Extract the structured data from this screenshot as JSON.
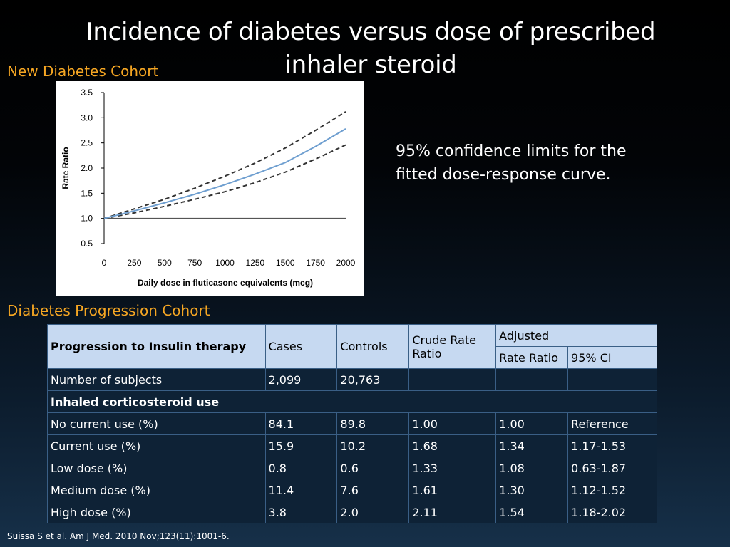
{
  "title": "Incidence of diabetes versus dose of prescribed inhaler steroid",
  "new_cohort_label": "New Diabetes Cohort",
  "progression_cohort_label": "Diabetes Progression Cohort",
  "note": "95% confidence limits for the fitted dose-response curve.",
  "citation": "Suissa S et al. Am J Med. 2010 Nov;123(11):1001-6.",
  "colors": {
    "accent": "#f5a623",
    "fitted_line": "#6f9fd0",
    "ci_line": "#333333",
    "reference_line": "#555555"
  },
  "chart_data": {
    "type": "line",
    "title": "",
    "xlabel": "Daily dose in fluticasone equivalents (mcg)",
    "ylabel": "Rate Ratio",
    "xlim": [
      0,
      2000
    ],
    "ylim": [
      0.5,
      3.5
    ],
    "x_ticks": [
      "0",
      "250",
      "500",
      "750",
      "1000",
      "1250",
      "1500",
      "1750",
      "2000"
    ],
    "y_ticks": [
      "0.5",
      "1.0",
      "1.5",
      "2.0",
      "2.5",
      "3.0",
      "3.5"
    ],
    "grid": false,
    "legend": "none",
    "series": [
      {
        "style": "solid-blue",
        "x": [
          0,
          250,
          500,
          750,
          1000,
          1250,
          1500,
          1750,
          2000
        ],
        "values": [
          1.0,
          1.15,
          1.31,
          1.48,
          1.67,
          1.88,
          2.11,
          2.43,
          2.78
        ]
      },
      {
        "style": "dashed-upper",
        "x": [
          0,
          250,
          500,
          750,
          1000,
          1250,
          1500,
          1750,
          2000
        ],
        "values": [
          1.0,
          1.19,
          1.38,
          1.6,
          1.84,
          2.1,
          2.4,
          2.75,
          3.12
        ]
      },
      {
        "style": "dashed-lower",
        "x": [
          0,
          250,
          500,
          750,
          1000,
          1250,
          1500,
          1750,
          2000
        ],
        "values": [
          1.0,
          1.11,
          1.24,
          1.38,
          1.53,
          1.71,
          1.92,
          2.18,
          2.46
        ]
      },
      {
        "style": "reference",
        "x": [
          0,
          2000
        ],
        "values": [
          1.0,
          1.0
        ]
      }
    ]
  },
  "table": {
    "header": {
      "label": "Progression to Insulin therapy",
      "cases": "Cases",
      "controls": "Controls",
      "crude": "Crude Rate Ratio",
      "adjusted": "Adjusted",
      "rate_ratio": "Rate Ratio",
      "ci": "95% CI"
    },
    "subjects": {
      "label": "Number of subjects",
      "cases": "2,099",
      "controls": "20,763"
    },
    "section": "Inhaled corticosteroid use",
    "rows": [
      {
        "label": "No current use (%)",
        "cases": "84.1",
        "controls": "89.8",
        "crude": "1.00",
        "adjusted": "1.00",
        "ci": "Reference"
      },
      {
        "label": "Current use (%)",
        "cases": "15.9",
        "controls": "10.2",
        "crude": "1.68",
        "adjusted": "1.34",
        "ci": "1.17-1.53"
      },
      {
        "label": "Low dose (%)",
        "cases": "0.8",
        "controls": "0.6",
        "crude": "1.33",
        "adjusted": "1.08",
        "ci": "0.63-1.87"
      },
      {
        "label": "Medium dose (%)",
        "cases": "11.4",
        "controls": "7.6",
        "crude": "1.61",
        "adjusted": "1.30",
        "ci": "1.12-1.52"
      },
      {
        "label": "High dose (%)",
        "cases": "3.8",
        "controls": "2.0",
        "crude": "2.11",
        "adjusted": "1.54",
        "ci": "1.18-2.02"
      }
    ]
  }
}
